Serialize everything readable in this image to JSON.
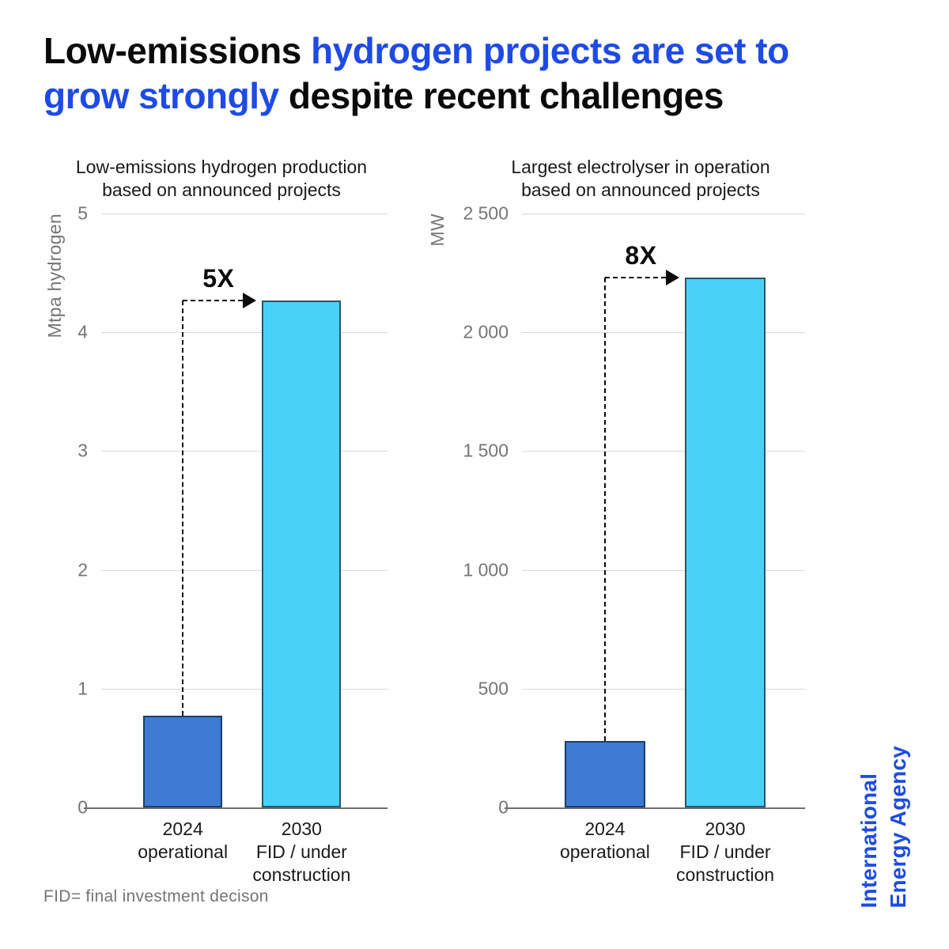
{
  "title": {
    "part1": "Low-emissions ",
    "part2": "hydrogen projects are set to grow strongly",
    "part3": " despite recent challenges"
  },
  "footer": {
    "note": "FID= final investment decison"
  },
  "logo": {
    "line1": "International",
    "line2": "Energy Agency"
  },
  "colors": {
    "title_black": "#0a0a0a",
    "accent_blue": "#1e4be6",
    "bar_2024": "#3e7ad3",
    "bar_2024_border": "#1d3d66",
    "bar_2030": "#48d2fa",
    "bar_2030_border": "#2a5564",
    "gridline": "#d9d9d9",
    "axis_line": "#6e6e6e",
    "tick_gray": "#757575"
  },
  "chart_data": [
    {
      "type": "bar",
      "title_lines": [
        "Low-emissions hydrogen production",
        "based on announced projects"
      ],
      "ylabel": "Mtpa hydrogen",
      "ylim": [
        0,
        5
      ],
      "grid": true,
      "legend": "none",
      "yticks": [
        {
          "v": 0,
          "label": "0"
        },
        {
          "v": 1,
          "label": "1"
        },
        {
          "v": 2,
          "label": "2"
        },
        {
          "v": 3,
          "label": "3"
        },
        {
          "v": 4,
          "label": "4"
        },
        {
          "v": 5,
          "label": "5"
        }
      ],
      "categories": [
        "2024 operational",
        "2030 FID / under construction"
      ],
      "category_label_lines": [
        [
          "2024",
          "operational"
        ],
        [
          "2030",
          "FID / under",
          "construction"
        ]
      ],
      "values": [
        0.77,
        4.27
      ],
      "bar_colors": [
        "#3e7ad3",
        "#48d2fa"
      ],
      "bar_borders": [
        "#1d3d66",
        "#2a5564"
      ],
      "annotation": "5X"
    },
    {
      "type": "bar",
      "title_lines": [
        "Largest electrolyser in operation",
        "based on announced projects"
      ],
      "ylabel": "MW",
      "ylim": [
        0,
        2500
      ],
      "grid": true,
      "legend": "none",
      "yticks": [
        {
          "v": 0,
          "label": "0"
        },
        {
          "v": 500,
          "label": "500"
        },
        {
          "v": 1000,
          "label": "1 000"
        },
        {
          "v": 1500,
          "label": "1 500"
        },
        {
          "v": 2000,
          "label": "2 000"
        },
        {
          "v": 2500,
          "label": "2 500"
        }
      ],
      "categories": [
        "2024 operational",
        "2030 FID / under construction"
      ],
      "category_label_lines": [
        [
          "2024",
          "operational"
        ],
        [
          "2030",
          "FID / under",
          "construction"
        ]
      ],
      "values": [
        280,
        2230
      ],
      "bar_colors": [
        "#3e7ad3",
        "#48d2fa"
      ],
      "bar_borders": [
        "#1d3d66",
        "#2a5564"
      ],
      "annotation": "8X"
    }
  ]
}
